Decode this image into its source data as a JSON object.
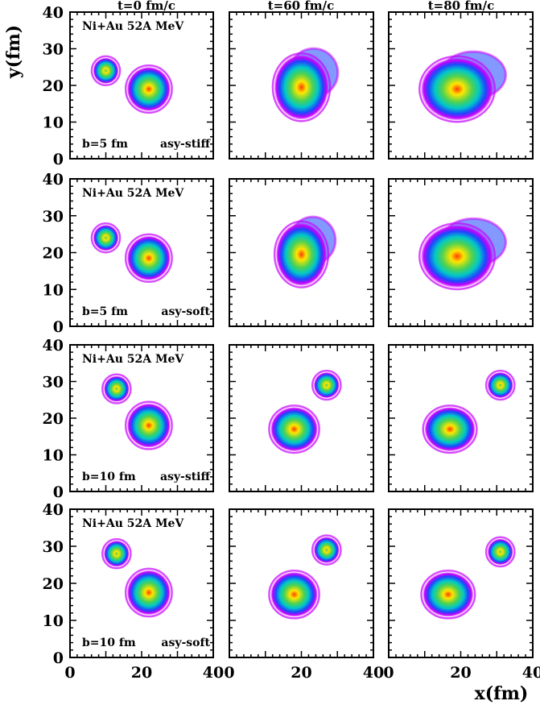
{
  "figure": {
    "column_titles": [
      "t=0 fm/c",
      "t=60 fm/c",
      "t=80 fm/c"
    ],
    "xlabel": "x(fm)",
    "ylabel": "y(fm)",
    "reaction_label": "Ni+Au 52A MeV",
    "rows": [
      {
        "impact": "b=5 fm",
        "eos": "asy-stiff"
      },
      {
        "impact": "b=5 fm",
        "eos": "asy-soft"
      },
      {
        "impact": "b=10 fm",
        "eos": "asy-stiff"
      },
      {
        "impact": "b=10 fm",
        "eos": "asy-soft"
      }
    ],
    "colors": {
      "low": "#c800ff",
      "mid_low": "#1e46ff",
      "mid": "#00c8c8",
      "mid_high": "#50d250",
      "high": "#ffe600",
      "peak": "#ff3c00"
    }
  },
  "chart_data": {
    "type": "heatmap",
    "xlim": [
      0,
      40
    ],
    "ylim": [
      0,
      40
    ],
    "xticks": [
      0,
      20,
      40
    ],
    "yticks": [
      0,
      10,
      20,
      30,
      40
    ],
    "xtick_labels": [
      "0",
      "20",
      "40"
    ],
    "ytick_labels": [
      "0",
      "10",
      "20",
      "30",
      "40"
    ],
    "panels": [
      {
        "row": 0,
        "col": 0,
        "blobs": [
          {
            "x": 10,
            "y": 24,
            "rx": 3.5,
            "ry": 3.5,
            "peak": 0.55
          },
          {
            "x": 22,
            "y": 19,
            "rx": 6,
            "ry": 6,
            "peak": 0.95
          }
        ]
      },
      {
        "row": 0,
        "col": 1,
        "blobs": [
          {
            "x": 20,
            "y": 19.5,
            "rx": 7.5,
            "ry": 8.8,
            "peak": 0.9,
            "ext": 0.3
          }
        ]
      },
      {
        "row": 0,
        "col": 2,
        "blobs": [
          {
            "x": 19,
            "y": 19,
            "rx": 10,
            "ry": 8.5,
            "peak": 0.85,
            "ext": 0.55
          }
        ]
      },
      {
        "row": 1,
        "col": 0,
        "blobs": [
          {
            "x": 10,
            "y": 24,
            "rx": 3.5,
            "ry": 3.5,
            "peak": 0.55
          },
          {
            "x": 22,
            "y": 18.5,
            "rx": 6,
            "ry": 6,
            "peak": 0.95
          }
        ]
      },
      {
        "row": 1,
        "col": 1,
        "blobs": [
          {
            "x": 20,
            "y": 19.5,
            "rx": 7,
            "ry": 8.5,
            "peak": 0.9,
            "ext": 0.3
          }
        ]
      },
      {
        "row": 1,
        "col": 2,
        "blobs": [
          {
            "x": 19,
            "y": 19,
            "rx": 10,
            "ry": 8.5,
            "peak": 0.85,
            "ext": 0.55
          }
        ]
      },
      {
        "row": 2,
        "col": 0,
        "blobs": [
          {
            "x": 13,
            "y": 28,
            "rx": 3.5,
            "ry": 3.5,
            "peak": 0.55
          },
          {
            "x": 22,
            "y": 18,
            "rx": 6,
            "ry": 6,
            "peak": 0.95
          }
        ]
      },
      {
        "row": 2,
        "col": 1,
        "blobs": [
          {
            "x": 18,
            "y": 17,
            "rx": 6.5,
            "ry": 6,
            "peak": 0.95
          },
          {
            "x": 27,
            "y": 29,
            "rx": 3.5,
            "ry": 3.5,
            "peak": 0.6
          }
        ]
      },
      {
        "row": 2,
        "col": 2,
        "blobs": [
          {
            "x": 17,
            "y": 17,
            "rx": 7,
            "ry": 6,
            "peak": 0.95
          },
          {
            "x": 31,
            "y": 29,
            "rx": 3.5,
            "ry": 3.5,
            "peak": 0.6
          }
        ]
      },
      {
        "row": 3,
        "col": 0,
        "blobs": [
          {
            "x": 13,
            "y": 28,
            "rx": 3.5,
            "ry": 3.5,
            "peak": 0.55
          },
          {
            "x": 22,
            "y": 17.5,
            "rx": 6,
            "ry": 6,
            "peak": 0.95
          }
        ]
      },
      {
        "row": 3,
        "col": 1,
        "blobs": [
          {
            "x": 18,
            "y": 17,
            "rx": 6.5,
            "ry": 6,
            "peak": 0.95
          },
          {
            "x": 27,
            "y": 29,
            "rx": 3.5,
            "ry": 3.5,
            "peak": 0.6
          }
        ]
      },
      {
        "row": 3,
        "col": 2,
        "blobs": [
          {
            "x": 16.5,
            "y": 17,
            "rx": 7,
            "ry": 6,
            "peak": 0.95
          },
          {
            "x": 31,
            "y": 28.5,
            "rx": 3.5,
            "ry": 3.5,
            "peak": 0.6
          }
        ]
      }
    ]
  }
}
